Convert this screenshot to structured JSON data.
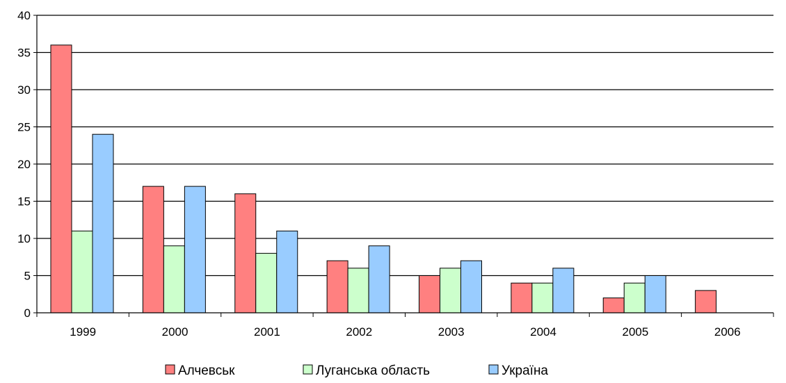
{
  "chart_data": {
    "type": "bar",
    "title": "",
    "xlabel": "",
    "ylabel": "",
    "categories": [
      "1999",
      "2000",
      "2001",
      "2002",
      "2003",
      "2004",
      "2005",
      "2006"
    ],
    "series": [
      {
        "name": "Алчевськ",
        "color": "#ff8080",
        "values": [
          36,
          17,
          16,
          7,
          5,
          4,
          2,
          3
        ]
      },
      {
        "name": "Луганська область",
        "color": "#ccffcc",
        "values": [
          11,
          9,
          8,
          6,
          6,
          4,
          4,
          null
        ]
      },
      {
        "name": "Україна",
        "color": "#99ccff",
        "values": [
          24,
          17,
          11,
          9,
          7,
          6,
          5,
          null
        ]
      }
    ],
    "ylim": [
      0,
      40
    ],
    "yticks": [
      0,
      5,
      10,
      15,
      20,
      25,
      30,
      35,
      40
    ],
    "grid": true,
    "legend_position": "bottom"
  }
}
